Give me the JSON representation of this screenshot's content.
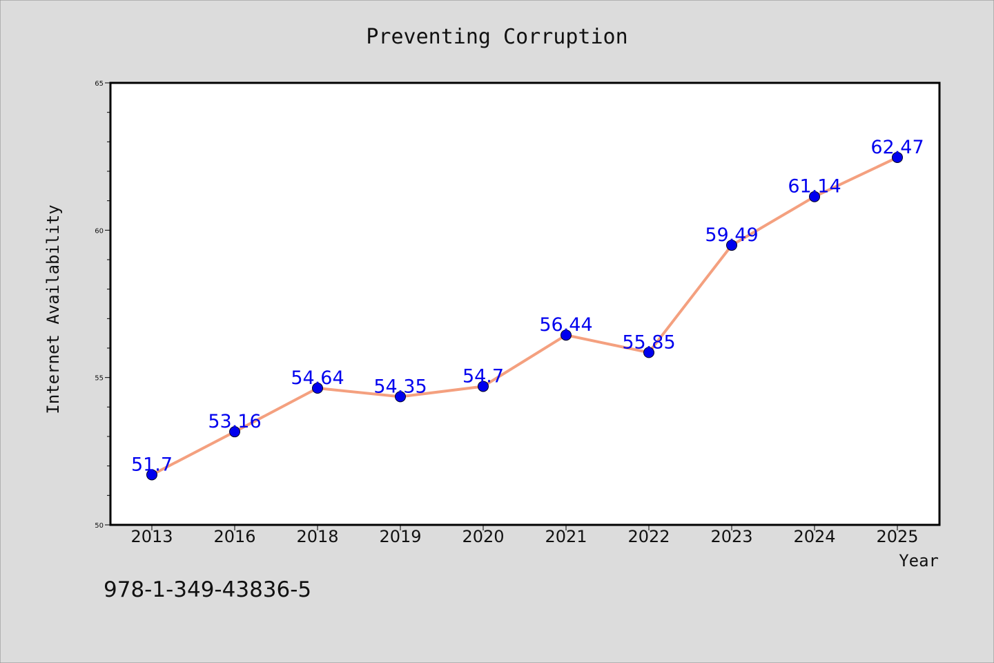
{
  "chart_data": {
    "type": "line",
    "title": "Preventing Corruption",
    "xlabel": "Year",
    "ylabel": "Internet Availability",
    "categories": [
      "2013",
      "2016",
      "2018",
      "2019",
      "2020",
      "2021",
      "2022",
      "2023",
      "2024",
      "2025"
    ],
    "series": [
      {
        "values": [
          51.7,
          53.16,
          54.64,
          54.35,
          54.7,
          56.44,
          55.85,
          59.49,
          61.14,
          62.47
        ],
        "labels": [
          "51.7",
          "53.16",
          "54.64",
          "54.35",
          "54.7",
          "56.44",
          "55.85",
          "59.49",
          "61.14",
          "62.47"
        ],
        "line_color": "#f4a07f",
        "marker_color": "#0000ee"
      }
    ],
    "ylim": [
      50,
      65
    ],
    "yticks": [
      50,
      55,
      60,
      65
    ],
    "grid": false,
    "legend": "none"
  },
  "annotation": "978-1-349-43836-5",
  "colors": {
    "background": "#dcdcdc",
    "plot_background": "#ffffff",
    "data_label": "#0000ee",
    "text": "#111111"
  }
}
